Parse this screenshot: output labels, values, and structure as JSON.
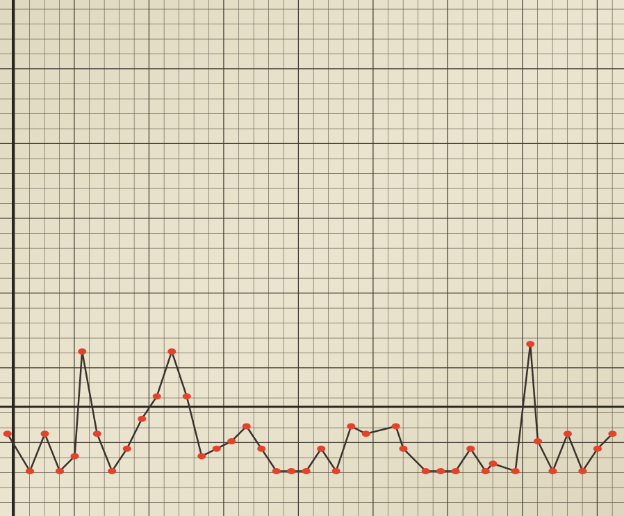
{
  "chart_data": {
    "type": "line",
    "x": [
      0.5,
      2,
      3,
      4,
      5,
      5.5,
      6.5,
      7.5,
      8.5,
      9.5,
      10.5,
      11.5,
      12.5,
      13.5,
      14.5,
      15.5,
      16.5,
      17.5,
      18.5,
      19.5,
      20.5,
      21.5,
      22.5,
      23.5,
      24.5,
      26.5,
      27,
      28.5,
      29.5,
      30.5,
      31.5,
      32.5,
      33,
      34.5,
      35.5,
      36,
      37,
      38,
      39,
      40,
      41
    ],
    "series": [
      {
        "color": "#3a332c",
        "marker_color": "#e2432a",
        "values": [
          5.5,
          3,
          5.5,
          3,
          4,
          11,
          5.5,
          3,
          4.5,
          6.5,
          8,
          11,
          8,
          4,
          4.5,
          5,
          6,
          4.5,
          3,
          3,
          3,
          4.5,
          3,
          6,
          5.5,
          6,
          4.5,
          3,
          3,
          3,
          4.5,
          3,
          3.5,
          3,
          11.5,
          5,
          3,
          5.5,
          3,
          4.5,
          5.5
        ]
      }
    ],
    "xlim": [
      0,
      41.77
    ],
    "ylim": [
      0,
      34.5
    ]
  }
}
